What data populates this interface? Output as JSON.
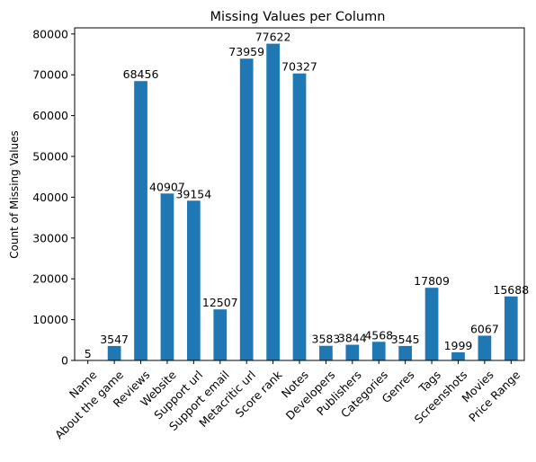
{
  "chart_data": {
    "type": "bar",
    "title": "Missing Values per Column",
    "xlabel": "",
    "ylabel": "Count of Missing Values",
    "categories": [
      "Name",
      "About the game",
      "Reviews",
      "Website",
      "Support url",
      "Support email",
      "Metacritic url",
      "Score rank",
      "Notes",
      "Developers",
      "Publishers",
      "Categories",
      "Genres",
      "Tags",
      "Screenshots",
      "Movies",
      "Price Range"
    ],
    "values": [
      5,
      3547,
      68456,
      40907,
      39154,
      12507,
      73959,
      77622,
      70327,
      3583,
      3844,
      4568,
      3545,
      17809,
      1999,
      6067,
      15688
    ],
    "value_labels": [
      "5",
      "3547",
      "68456",
      "40907",
      "39154",
      "12507",
      "73959",
      "77622",
      "70327",
      "3583",
      "3844",
      "4568",
      "3545",
      "17809",
      "1999",
      "6067",
      "15688"
    ],
    "ylim": [
      0,
      81500
    ],
    "yticks": [
      0,
      10000,
      20000,
      30000,
      40000,
      50000,
      60000,
      70000,
      80000
    ],
    "ytick_labels": [
      "0",
      "10000",
      "20000",
      "30000",
      "40000",
      "50000",
      "60000",
      "70000",
      "80000"
    ],
    "grid": false,
    "bar_color": "#1f77b4"
  }
}
